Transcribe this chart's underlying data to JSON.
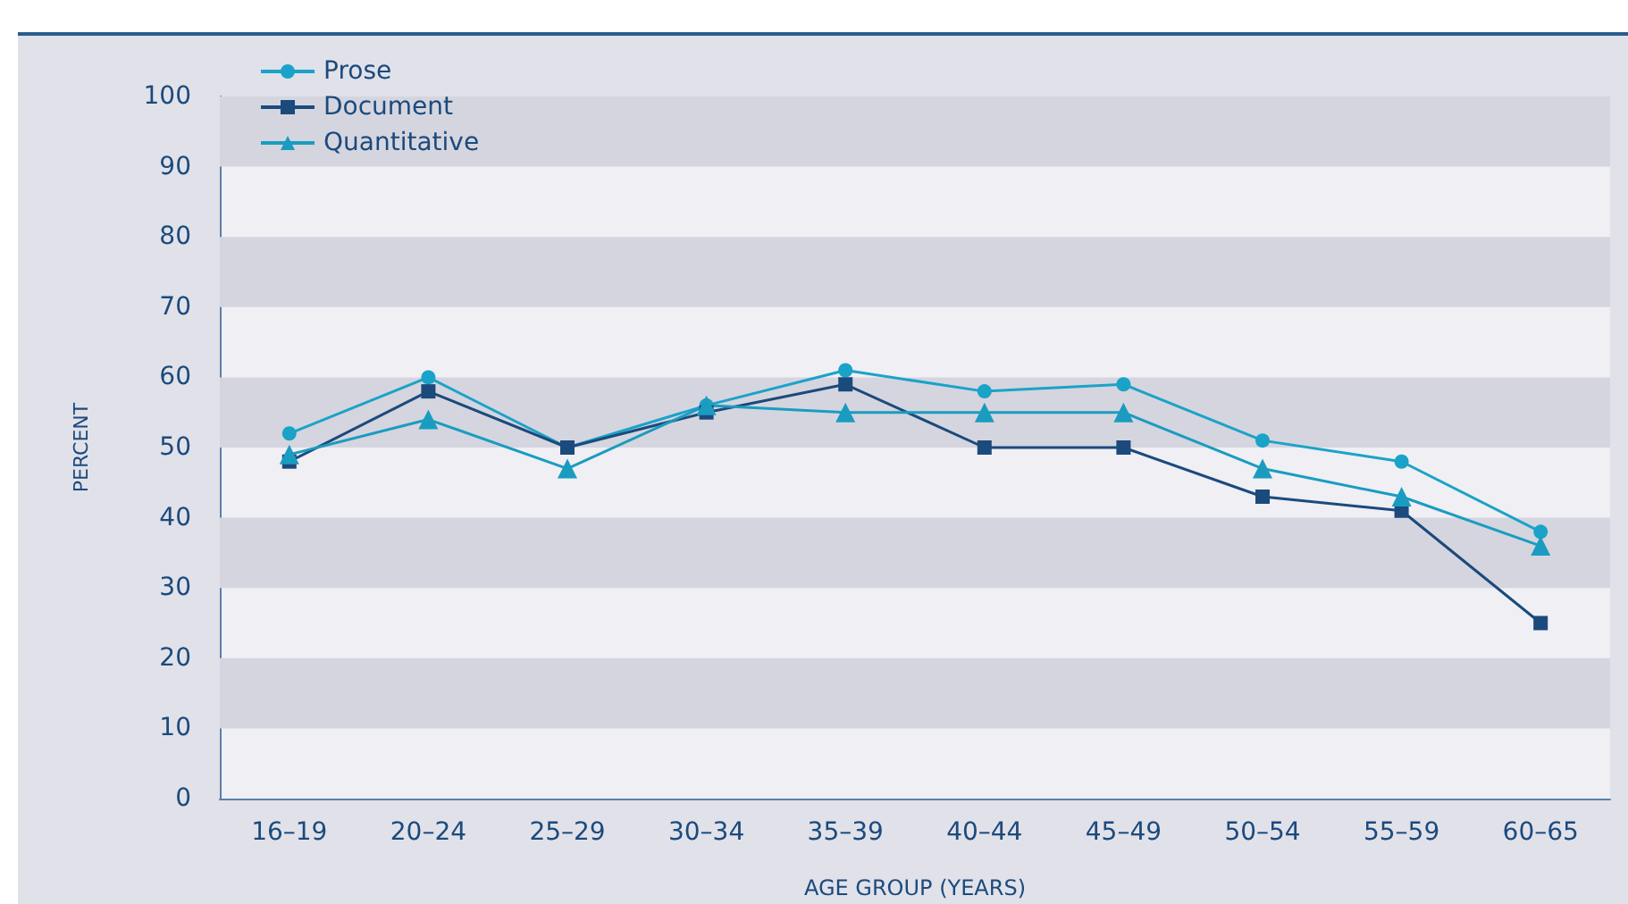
{
  "chart_data": {
    "type": "line",
    "xlabel": "AGE GROUP (YEARS)",
    "ylabel": "PERCENT",
    "categories": [
      "16–19",
      "20–24",
      "25–29",
      "30–34",
      "35–39",
      "40–44",
      "45–49",
      "50–54",
      "55–59",
      "60–65"
    ],
    "ylim": [
      0,
      100
    ],
    "yticks": [
      0,
      10,
      20,
      30,
      40,
      50,
      60,
      70,
      80,
      90,
      100
    ],
    "grid": false,
    "legend": "top left",
    "bands": [
      {
        "axis": "y",
        "from": 10,
        "to": 20,
        "color": "#d5d5df"
      },
      {
        "axis": "y",
        "from": 30,
        "to": 40,
        "color": "#d5d5df"
      },
      {
        "axis": "y",
        "from": 50,
        "to": 60,
        "color": "#d5d5df"
      },
      {
        "axis": "y",
        "from": 70,
        "to": 80,
        "color": "#d5d5df"
      },
      {
        "axis": "y",
        "from": 90,
        "to": 100,
        "color": "#d5d5df"
      }
    ],
    "series": [
      {
        "name": "Prose",
        "color": "#1aa3c8",
        "marker": "circle",
        "values": [
          52,
          60,
          50,
          56,
          61,
          58,
          59,
          51,
          48,
          38
        ]
      },
      {
        "name": "Document",
        "color": "#1b4a7c",
        "marker": "square",
        "values": [
          48,
          58,
          50,
          55,
          59,
          50,
          50,
          43,
          41,
          25
        ]
      },
      {
        "name": "Quantitative",
        "color": "#1a9cc0",
        "marker": "triangle",
        "values": [
          49,
          54,
          47,
          56,
          55,
          55,
          55,
          47,
          43,
          36
        ]
      }
    ]
  }
}
